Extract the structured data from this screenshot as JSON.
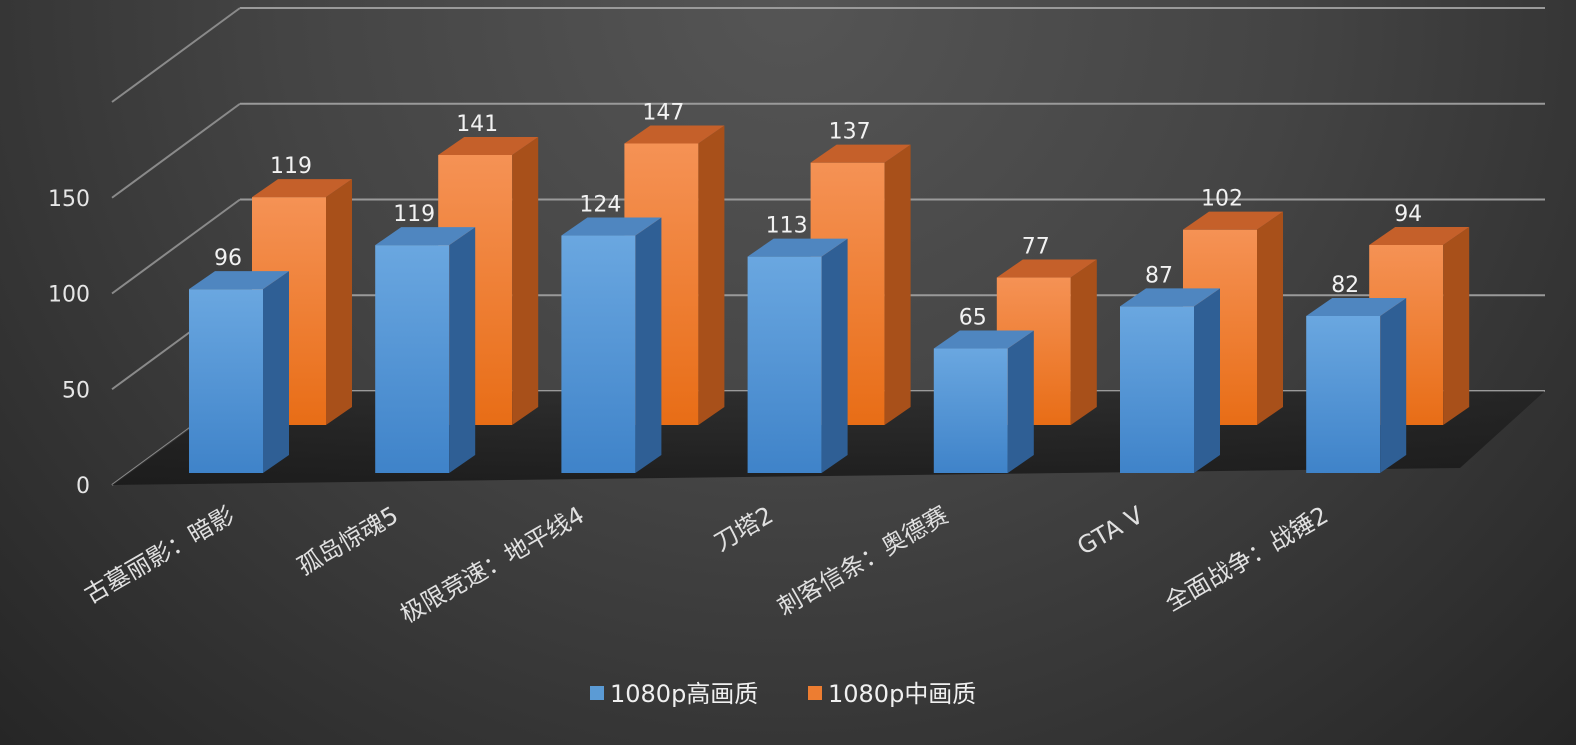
{
  "chart_data": {
    "type": "bar",
    "categories": [
      "古墓丽影：暗影",
      "孤岛惊魂5",
      "极限竞速：地平线4",
      "刀塔2",
      "刺客信条：奥德赛",
      "GTA V",
      "全面战争：战锤2"
    ],
    "series": [
      {
        "name": "1080p高画质",
        "values": [
          96,
          119,
          124,
          113,
          65,
          87,
          82
        ]
      },
      {
        "name": "1080p中画质",
        "values": [
          119,
          141,
          147,
          137,
          77,
          102,
          94
        ]
      }
    ],
    "yticks": [
      "0",
      "50",
      "100",
      "150"
    ],
    "ylim": [
      0,
      200
    ],
    "grid": true,
    "legend": "bottom",
    "colors": {
      "series0": "#5b9bd5",
      "series1": "#ed7d31",
      "background": "#404040",
      "grid": "#a6a6a6"
    }
  }
}
